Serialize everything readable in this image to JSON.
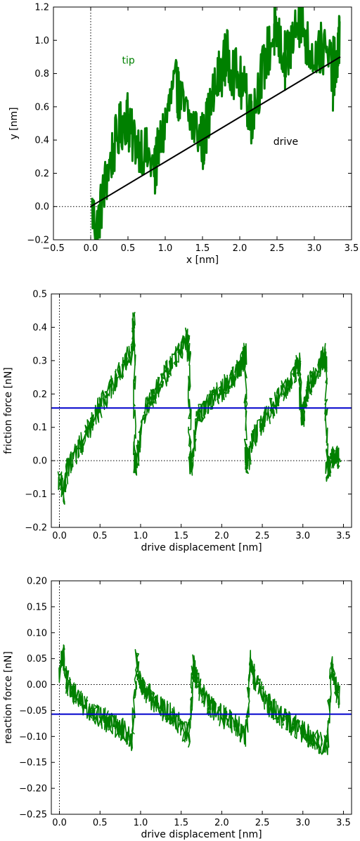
{
  "chart_data": [
    {
      "id": "trajectory",
      "type": "line",
      "title": "",
      "xlabel": "x [nm]",
      "ylabel": "y [nm]",
      "xlim": [
        -0.5,
        3.5
      ],
      "ylim": [
        -0.2,
        1.2
      ],
      "xticks": [
        "−0.5",
        "0.0",
        "0.5",
        "1.0",
        "1.5",
        "2.0",
        "2.5",
        "3.0",
        "3.5"
      ],
      "yticks": [
        "−0.2",
        "0.0",
        "0.2",
        "0.4",
        "0.6",
        "0.8",
        "1.0",
        "1.2"
      ],
      "grid": false,
      "reference_lines": {
        "x": 0.0,
        "y": 0.0,
        "style": "dotted"
      },
      "annotations": [
        {
          "text": "tip",
          "x": 0.42,
          "y": 0.86,
          "color": "#008000"
        },
        {
          "text": "drive",
          "x": 2.45,
          "y": 0.37,
          "color": "#000000"
        }
      ],
      "series": [
        {
          "name": "tip",
          "color": "#008000",
          "x": [
            0.02,
            0.08,
            0.14,
            0.2,
            0.28,
            0.36,
            0.44,
            0.5,
            0.52,
            0.6,
            0.7,
            0.8,
            0.87,
            0.86,
            0.92,
            1.0,
            1.08,
            1.16,
            1.18,
            1.26,
            1.36,
            1.46,
            1.52,
            1.5,
            1.56,
            1.64,
            1.72,
            1.8,
            1.83,
            1.9,
            2.0,
            2.1,
            2.16,
            2.15,
            2.22,
            2.3,
            2.38,
            2.46,
            2.48,
            2.55,
            2.62,
            2.6,
            2.66,
            2.72,
            2.8,
            2.83,
            2.9,
            3.0,
            3.1,
            3.2,
            3.28,
            3.25,
            3.3,
            3.34,
            3.33
          ],
          "y": [
            -0.02,
            -0.14,
            0.0,
            0.15,
            0.3,
            0.42,
            0.52,
            0.55,
            0.43,
            0.4,
            0.35,
            0.27,
            0.2,
            0.23,
            0.35,
            0.5,
            0.65,
            0.73,
            0.66,
            0.57,
            0.5,
            0.44,
            0.4,
            0.38,
            0.5,
            0.65,
            0.78,
            0.88,
            0.9,
            0.83,
            0.75,
            0.63,
            0.56,
            0.52,
            0.66,
            0.8,
            0.93,
            1.04,
            1.08,
            0.95,
            0.88,
            0.82,
            0.92,
            1.03,
            1.12,
            1.15,
            0.97,
            0.92,
            0.95,
            0.87,
            0.85,
            0.74,
            0.85,
            0.98,
            1.05
          ]
        },
        {
          "name": "drive",
          "color": "#000000",
          "x": [
            0.0,
            3.35
          ],
          "y": [
            0.0,
            0.9
          ]
        }
      ]
    },
    {
      "id": "friction",
      "type": "line",
      "title": "",
      "xlabel": "drive displacement [nm]",
      "ylabel": "friction force [nN]",
      "xlim": [
        -0.1,
        3.6
      ],
      "ylim": [
        -0.2,
        0.5
      ],
      "xticks": [
        "0.0",
        "0.5",
        "1.0",
        "1.5",
        "2.0",
        "2.5",
        "3.0",
        "3.5"
      ],
      "yticks": [
        "−0.2",
        "−0.1",
        "0.0",
        "0.1",
        "0.2",
        "0.3",
        "0.4",
        "0.5"
      ],
      "grid": false,
      "reference_lines": {
        "x": 0.0,
        "y": 0.0,
        "style": "dotted"
      },
      "horizontal_line": {
        "y": 0.158,
        "color": "#0000cc"
      },
      "series": [
        {
          "color": "#008000",
          "x": [
            0.0,
            0.05,
            0.1,
            0.2,
            0.3,
            0.4,
            0.5,
            0.6,
            0.7,
            0.8,
            0.9,
            0.92,
            0.93,
            0.95,
            1.0,
            1.1,
            1.2,
            1.3,
            1.4,
            1.5,
            1.58,
            1.6,
            1.61,
            1.62,
            1.7,
            1.8,
            1.9,
            2.0,
            2.1,
            2.2,
            2.27,
            2.29,
            2.3,
            2.31,
            2.4,
            2.5,
            2.6,
            2.7,
            2.8,
            2.9,
            2.95,
            2.98,
            3.0,
            3.05,
            3.1,
            3.2,
            3.26,
            3.28,
            3.3,
            3.35,
            3.4,
            3.45
          ],
          "y": [
            -0.05,
            -0.1,
            -0.02,
            0.02,
            0.06,
            0.11,
            0.16,
            0.2,
            0.25,
            0.29,
            0.33,
            0.42,
            0.0,
            -0.01,
            0.1,
            0.17,
            0.21,
            0.25,
            0.3,
            0.34,
            0.37,
            0.3,
            0.0,
            -0.02,
            0.13,
            0.16,
            0.19,
            0.21,
            0.24,
            0.27,
            0.3,
            0.32,
            0.02,
            -0.01,
            0.07,
            0.11,
            0.15,
            0.19,
            0.22,
            0.26,
            0.3,
            0.17,
            0.13,
            0.2,
            0.24,
            0.27,
            0.32,
            0.28,
            -0.03,
            0.0,
            0.02,
            0.0
          ]
        }
      ]
    },
    {
      "id": "reaction",
      "type": "line",
      "title": "",
      "xlabel": "drive displacement [nm]",
      "ylabel": "reaction force [nN]",
      "xlim": [
        -0.1,
        3.6
      ],
      "ylim": [
        -0.25,
        0.2
      ],
      "xticks": [
        "0.0",
        "0.5",
        "1.0",
        "1.5",
        "2.0",
        "2.5",
        "3.0",
        "3.5"
      ],
      "yticks": [
        "−0.25",
        "−0.20",
        "−0.15",
        "−0.10",
        "−0.05",
        "0.00",
        "0.05",
        "0.10",
        "0.15",
        "0.20"
      ],
      "grid": false,
      "reference_lines": {
        "x": 0.0,
        "y": 0.0,
        "style": "dotted"
      },
      "horizontal_line": {
        "y": -0.057,
        "color": "#0000cc"
      },
      "series": [
        {
          "color": "#008000",
          "x": [
            0.0,
            0.05,
            0.1,
            0.2,
            0.3,
            0.4,
            0.5,
            0.6,
            0.7,
            0.8,
            0.9,
            0.95,
            1.0,
            1.1,
            1.2,
            1.3,
            1.4,
            1.5,
            1.6,
            1.65,
            1.7,
            1.8,
            1.9,
            2.0,
            2.1,
            2.2,
            2.3,
            2.35,
            2.4,
            2.5,
            2.6,
            2.7,
            2.8,
            2.9,
            3.0,
            3.1,
            3.2,
            3.3,
            3.35,
            3.4,
            3.45
          ],
          "y": [
            0.02,
            0.06,
            0.0,
            -0.02,
            -0.04,
            -0.05,
            -0.06,
            -0.07,
            -0.08,
            -0.09,
            -0.11,
            0.05,
            0.0,
            -0.02,
            -0.04,
            -0.05,
            -0.06,
            -0.08,
            -0.1,
            0.04,
            0.0,
            -0.03,
            -0.05,
            -0.06,
            -0.07,
            -0.08,
            -0.1,
            0.05,
            0.01,
            -0.02,
            -0.04,
            -0.06,
            -0.07,
            -0.08,
            -0.09,
            -0.1,
            -0.11,
            -0.12,
            0.04,
            0.0,
            -0.03
          ]
        }
      ]
    }
  ]
}
